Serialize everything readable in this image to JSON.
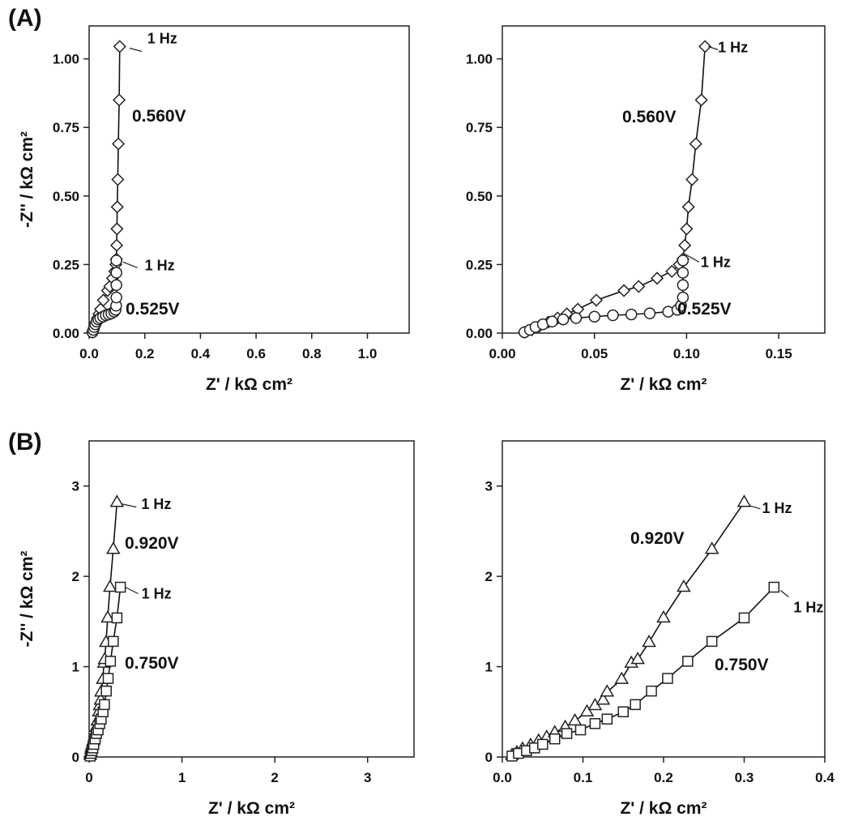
{
  "panels": {
    "A": "(A)",
    "B": "(B)"
  },
  "chart_data": [
    {
      "id": "A-full",
      "type": "scatter",
      "title": "",
      "xlabel": "Z' / kΩ cm²",
      "ylabel": "-Z'' / kΩ cm²",
      "xlim": [
        0,
        1.15
      ],
      "ylim": [
        0,
        1.12
      ],
      "xticks": [
        0.0,
        0.2,
        0.4,
        0.6,
        0.8,
        1.0
      ],
      "xtick_labels": [
        "0.0",
        "0.2",
        "0.4",
        "0.6",
        "0.8",
        "1.0"
      ],
      "yticks": [
        0.0,
        0.25,
        0.5,
        0.75,
        1.0
      ],
      "ytick_labels": [
        "0.00",
        "0.25",
        "0.50",
        "0.75",
        "1.00"
      ],
      "series": [
        {
          "name": "0.560V",
          "marker": "diamond",
          "x": [
            0.012,
            0.016,
            0.02,
            0.025,
            0.03,
            0.035,
            0.041,
            0.051,
            0.066,
            0.074,
            0.084,
            0.092,
            0.096,
            0.098,
            0.099,
            0.1,
            0.101,
            0.103,
            0.105,
            0.108,
            0.11
          ],
          "y": [
            0.003,
            0.012,
            0.025,
            0.04,
            0.055,
            0.07,
            0.087,
            0.12,
            0.155,
            0.17,
            0.2,
            0.225,
            0.25,
            0.27,
            0.32,
            0.38,
            0.46,
            0.56,
            0.69,
            0.85,
            1.045
          ]
        },
        {
          "name": "0.525V",
          "marker": "circle",
          "x": [
            0.012,
            0.015,
            0.018,
            0.022,
            0.027,
            0.033,
            0.04,
            0.05,
            0.06,
            0.07,
            0.08,
            0.09,
            0.095,
            0.097,
            0.098,
            0.098,
            0.098,
            0.098
          ],
          "y": [
            0.003,
            0.012,
            0.022,
            0.032,
            0.042,
            0.05,
            0.055,
            0.06,
            0.065,
            0.068,
            0.072,
            0.078,
            0.085,
            0.1,
            0.13,
            0.175,
            0.22,
            0.265
          ]
        }
      ],
      "annotations": [
        {
          "text": "1 Hz",
          "series": "0.560V"
        },
        {
          "text": "0.560V"
        },
        {
          "text": "1 Hz",
          "series": "0.525V"
        },
        {
          "text": "0.525V"
        }
      ]
    },
    {
      "id": "A-zoom",
      "type": "scatter",
      "title": "",
      "xlabel": "Z' / kΩ cm²",
      "ylabel": "",
      "xlim": [
        0,
        0.175
      ],
      "ylim": [
        0,
        1.12
      ],
      "xticks": [
        0.0,
        0.05,
        0.1,
        0.15
      ],
      "xtick_labels": [
        "0.00",
        "0.05",
        "0.10",
        "0.15"
      ],
      "yticks": [
        0.0,
        0.25,
        0.5,
        0.75,
        1.0
      ],
      "ytick_labels": [
        "0.00",
        "0.25",
        "0.50",
        "0.75",
        "1.00"
      ],
      "series": [
        {
          "name": "0.560V",
          "marker": "diamond",
          "x": [
            0.012,
            0.016,
            0.02,
            0.025,
            0.03,
            0.035,
            0.041,
            0.051,
            0.066,
            0.074,
            0.084,
            0.092,
            0.096,
            0.098,
            0.099,
            0.1,
            0.101,
            0.103,
            0.105,
            0.108,
            0.11
          ],
          "y": [
            0.003,
            0.012,
            0.025,
            0.04,
            0.055,
            0.07,
            0.087,
            0.12,
            0.155,
            0.17,
            0.2,
            0.225,
            0.25,
            0.27,
            0.32,
            0.38,
            0.46,
            0.56,
            0.69,
            0.85,
            1.045
          ]
        },
        {
          "name": "0.525V",
          "marker": "circle",
          "x": [
            0.012,
            0.015,
            0.018,
            0.022,
            0.027,
            0.033,
            0.04,
            0.05,
            0.06,
            0.07,
            0.08,
            0.09,
            0.095,
            0.097,
            0.098,
            0.098,
            0.098,
            0.098
          ],
          "y": [
            0.003,
            0.012,
            0.022,
            0.032,
            0.042,
            0.05,
            0.055,
            0.06,
            0.065,
            0.068,
            0.072,
            0.078,
            0.085,
            0.1,
            0.13,
            0.175,
            0.22,
            0.265
          ]
        }
      ],
      "annotations": [
        {
          "text": "1 Hz",
          "series": "0.560V"
        },
        {
          "text": "0.560V"
        },
        {
          "text": "1 Hz",
          "series": "0.525V"
        },
        {
          "text": "0.525V"
        }
      ]
    },
    {
      "id": "B-full",
      "type": "scatter",
      "title": "",
      "xlabel": "Z' / kΩ cm²",
      "ylabel": "-Z'' / kΩ cm²",
      "xlim": [
        0,
        3.5
      ],
      "ylim": [
        0,
        3.5
      ],
      "xticks": [
        0,
        1,
        2,
        3
      ],
      "xtick_labels": [
        "0",
        "1",
        "2",
        "3"
      ],
      "yticks": [
        0,
        1,
        2,
        3
      ],
      "ytick_labels": [
        "0",
        "1",
        "2",
        "3"
      ],
      "series": [
        {
          "name": "0.920V",
          "marker": "triangle",
          "x": [
            0.012,
            0.018,
            0.025,
            0.035,
            0.045,
            0.055,
            0.065,
            0.078,
            0.09,
            0.105,
            0.115,
            0.125,
            0.13,
            0.148,
            0.16,
            0.168,
            0.182,
            0.2,
            0.225,
            0.26,
            0.3
          ],
          "y": [
            0.02,
            0.05,
            0.09,
            0.13,
            0.18,
            0.22,
            0.27,
            0.33,
            0.4,
            0.5,
            0.57,
            0.63,
            0.72,
            0.86,
            1.04,
            1.08,
            1.27,
            1.54,
            1.88,
            2.3,
            2.82
          ]
        },
        {
          "name": "0.750V",
          "marker": "square",
          "x": [
            0.012,
            0.02,
            0.03,
            0.04,
            0.05,
            0.065,
            0.08,
            0.097,
            0.115,
            0.13,
            0.15,
            0.165,
            0.185,
            0.205,
            0.23,
            0.26,
            0.3,
            0.337
          ],
          "y": [
            0.01,
            0.04,
            0.07,
            0.1,
            0.14,
            0.2,
            0.26,
            0.3,
            0.37,
            0.42,
            0.5,
            0.58,
            0.73,
            0.87,
            1.06,
            1.28,
            1.54,
            1.88
          ]
        }
      ],
      "annotations": [
        {
          "text": "1 Hz",
          "series": "0.920V"
        },
        {
          "text": "0.920V"
        },
        {
          "text": "1 Hz",
          "series": "0.750V"
        },
        {
          "text": "0.750V"
        }
      ]
    },
    {
      "id": "B-zoom",
      "type": "scatter",
      "title": "",
      "xlabel": "Z' / kΩ cm²",
      "ylabel": "",
      "xlim": [
        0,
        0.4
      ],
      "ylim": [
        0,
        3.5
      ],
      "xticks": [
        0.0,
        0.1,
        0.2,
        0.3,
        0.4
      ],
      "xtick_labels": [
        "0.0",
        "0.1",
        "0.2",
        "0.3",
        "0.4"
      ],
      "yticks": [
        0,
        1,
        2,
        3
      ],
      "ytick_labels": [
        "0",
        "1",
        "2",
        "3"
      ],
      "series": [
        {
          "name": "0.920V",
          "marker": "triangle",
          "x": [
            0.012,
            0.018,
            0.025,
            0.035,
            0.045,
            0.055,
            0.065,
            0.078,
            0.09,
            0.105,
            0.115,
            0.125,
            0.13,
            0.148,
            0.16,
            0.168,
            0.182,
            0.2,
            0.225,
            0.26,
            0.3
          ],
          "y": [
            0.02,
            0.05,
            0.09,
            0.13,
            0.18,
            0.22,
            0.27,
            0.33,
            0.4,
            0.5,
            0.57,
            0.63,
            0.72,
            0.86,
            1.04,
            1.08,
            1.27,
            1.54,
            1.88,
            2.3,
            2.82
          ]
        },
        {
          "name": "0.750V",
          "marker": "square",
          "x": [
            0.012,
            0.02,
            0.03,
            0.04,
            0.05,
            0.065,
            0.08,
            0.097,
            0.115,
            0.13,
            0.15,
            0.165,
            0.185,
            0.205,
            0.23,
            0.26,
            0.3,
            0.337
          ],
          "y": [
            0.01,
            0.04,
            0.07,
            0.1,
            0.14,
            0.2,
            0.26,
            0.3,
            0.37,
            0.42,
            0.5,
            0.58,
            0.73,
            0.87,
            1.06,
            1.28,
            1.54,
            1.88
          ]
        }
      ],
      "annotations": [
        {
          "text": "1 Hz",
          "series": "0.920V"
        },
        {
          "text": "0.920V"
        },
        {
          "text": "1 Hz",
          "series": "0.750V"
        },
        {
          "text": "0.750V"
        }
      ]
    }
  ]
}
